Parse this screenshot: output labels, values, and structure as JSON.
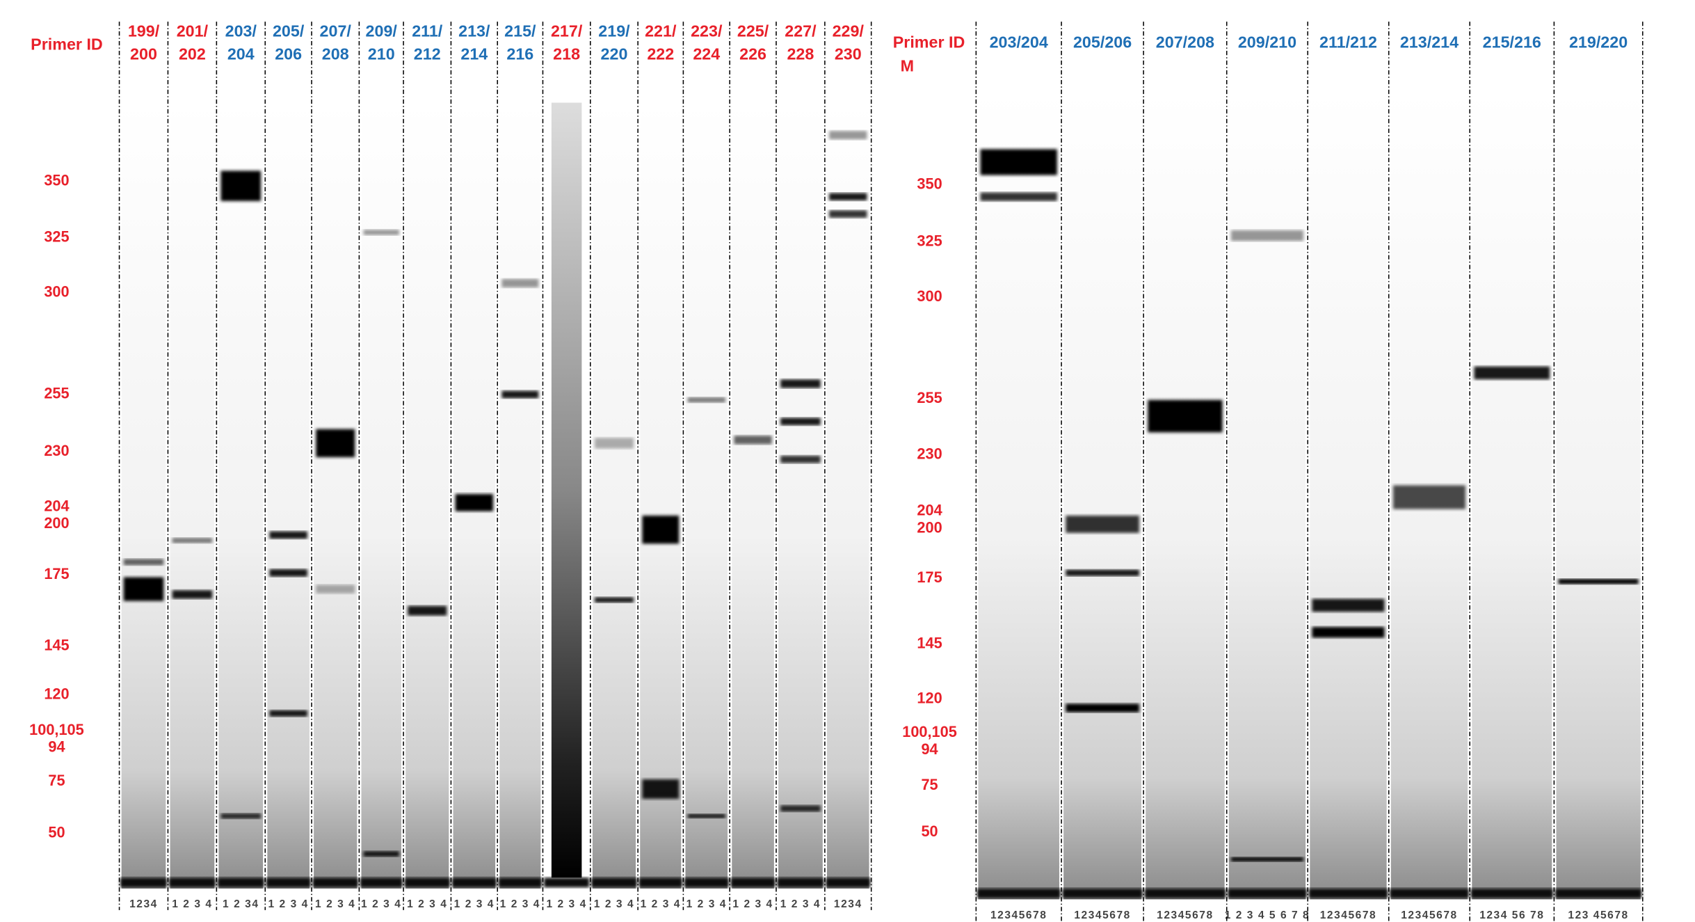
{
  "left_panel": {
    "header": "Primer ID",
    "primers": [
      {
        "top": "199/",
        "bottom": "200",
        "color": "#e8202a",
        "lanes": "1234"
      },
      {
        "top": "201/",
        "bottom": "202",
        "color": "#e8202a",
        "lanes": "1 2 3 4"
      },
      {
        "top": "203/",
        "bottom": "204",
        "color": "#1f6fb5",
        "lanes": "1 2 34"
      },
      {
        "top": "205/",
        "bottom": "206",
        "color": "#1f6fb5",
        "lanes": "1 2 3 4"
      },
      {
        "top": "207/",
        "bottom": "208",
        "color": "#1f6fb5",
        "lanes": "1 2 3 4"
      },
      {
        "top": "209/",
        "bottom": "210",
        "color": "#1f6fb5",
        "lanes": "1 2 3 4"
      },
      {
        "top": "211/",
        "bottom": "212",
        "color": "#1f6fb5",
        "lanes": "1 2 3 4"
      },
      {
        "top": "213/",
        "bottom": "214",
        "color": "#1f6fb5",
        "lanes": "1 2 3 4"
      },
      {
        "top": "215/",
        "bottom": "216",
        "color": "#1f6fb5",
        "lanes": "1 2 3 4"
      },
      {
        "top": "217/",
        "bottom": "218",
        "color": "#e8202a",
        "lanes": "1 2 3 4"
      },
      {
        "top": "219/",
        "bottom": "220",
        "color": "#1f6fb5",
        "lanes": "1 2 3 4"
      },
      {
        "top": "221/",
        "bottom": "222",
        "color": "#e8202a",
        "lanes": "1 2 3 4"
      },
      {
        "top": "223/",
        "bottom": "224",
        "color": "#e8202a",
        "lanes": "1 2 3 4"
      },
      {
        "top": "225/",
        "bottom": "226",
        "color": "#e8202a",
        "lanes": "1 2 3 4"
      },
      {
        "top": "227/",
        "bottom": "228",
        "color": "#e8202a",
        "lanes": "1 2 3 4"
      },
      {
        "top": "229/",
        "bottom": "230",
        "color": "#e8202a",
        "lanes": "1234"
      }
    ],
    "markers": [
      "350",
      "325",
      "300",
      "255",
      "230",
      "204",
      "200",
      "175",
      "145",
      "120",
      "100,105",
      "94",
      "75",
      "50"
    ]
  },
  "right_panel": {
    "header": "Primer ID",
    "subheader": "M",
    "primers": [
      {
        "label": "203/204",
        "color": "#1f6fb5",
        "lanes": "12345678"
      },
      {
        "label": "205/206",
        "color": "#1f6fb5",
        "lanes": "12345678"
      },
      {
        "label": "207/208",
        "color": "#1f6fb5",
        "lanes": "12345678"
      },
      {
        "label": "209/210",
        "color": "#1f6fb5",
        "lanes": "1 2 3 4 5 6 7 8"
      },
      {
        "label": "211/212",
        "color": "#1f6fb5",
        "lanes": "12345678"
      },
      {
        "label": "213/214",
        "color": "#1f6fb5",
        "lanes": "12345678"
      },
      {
        "label": "215/216",
        "color": "#1f6fb5",
        "lanes": "1234 56 78"
      },
      {
        "label": "219/220",
        "color": "#1f6fb5",
        "lanes": "123 45678"
      }
    ],
    "markers": [
      "350",
      "325",
      "300",
      "255",
      "230",
      "204",
      "200",
      "175",
      "145",
      "120",
      "100,105",
      "94",
      "75",
      "50"
    ]
  }
}
